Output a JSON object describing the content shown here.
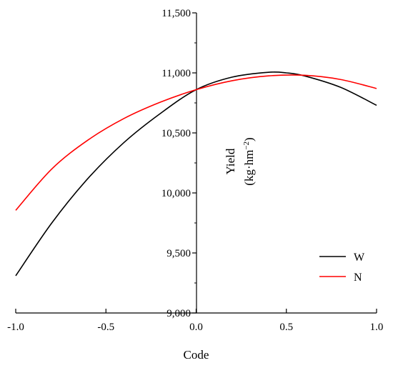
{
  "chart_data": {
    "type": "line",
    "xlabel": "Code",
    "ylabel": {
      "line1": "Yield",
      "unit_prefix": "(kg·hm",
      "unit_exp": "−2",
      "unit_suffix": ")"
    },
    "xlim": [
      -1.0,
      1.0
    ],
    "ylim": [
      9000,
      11500
    ],
    "x_ticks": [
      -1.0,
      -0.5,
      0.0,
      0.5,
      1.0
    ],
    "x_tick_labels": [
      "-1.0",
      "-0.5",
      "0.0",
      "0.5",
      "1.0"
    ],
    "y_ticks": [
      9000,
      9500,
      10000,
      10500,
      11000,
      11500
    ],
    "y_tick_labels": [
      "9,000",
      "9,500",
      "10,000",
      "10,500",
      "11,000",
      "11,500"
    ],
    "grid": false,
    "legend_position": "bottom-right",
    "series": [
      {
        "name": "W",
        "color": "#000000",
        "x": [
          -1.0,
          -0.8,
          -0.6,
          -0.4,
          -0.2,
          0.0,
          0.2,
          0.4,
          0.5,
          0.6,
          0.8,
          1.0
        ],
        "y": [
          9310,
          9750,
          10120,
          10420,
          10660,
          10860,
          10965,
          11005,
          11000,
          10975,
          10880,
          10730
        ]
      },
      {
        "name": "N",
        "color": "#ff0000",
        "x": [
          -1.0,
          -0.8,
          -0.6,
          -0.4,
          -0.2,
          0.0,
          0.2,
          0.4,
          0.6,
          0.8,
          1.0
        ],
        "y": [
          9855,
          10200,
          10440,
          10620,
          10755,
          10860,
          10935,
          10975,
          10980,
          10945,
          10870
        ]
      }
    ]
  }
}
